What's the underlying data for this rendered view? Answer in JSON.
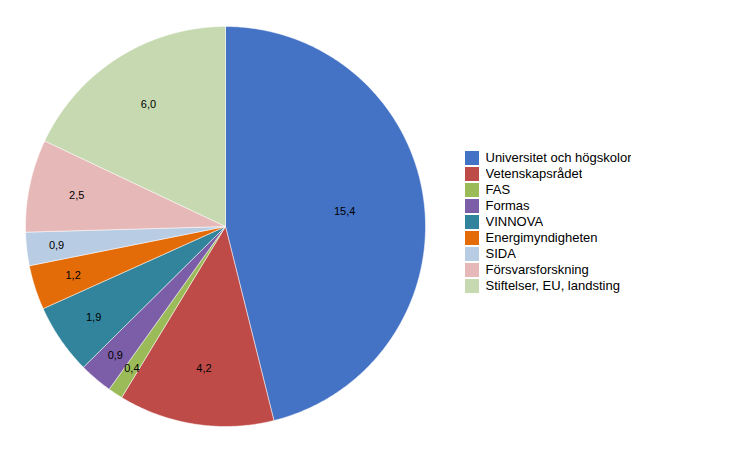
{
  "chart_data": {
    "type": "pie",
    "categories": [
      "Universitet och högskolor",
      "Vetenskapsrådet",
      "FAS",
      "Formas",
      "VINNOVA",
      "Energimyndigheten",
      "SIDA",
      "Försvarsforskning",
      "Stiftelser, EU, landsting"
    ],
    "values": [
      15.4,
      4.2,
      0.4,
      0.9,
      1.9,
      1.2,
      0.9,
      2.5,
      6.0
    ],
    "value_labels": [
      "15,4",
      "4,2",
      "0,4",
      "0,9",
      "1,9",
      "1,2",
      "0,9",
      "2,5",
      "6,0"
    ],
    "colors": [
      "#4472C4",
      "#BE4B48",
      "#9BBB59",
      "#7B5EA7",
      "#31849B",
      "#E36C09",
      "#B8CCE4",
      "#E6B9B8",
      "#C6D9B0"
    ],
    "data_labels": true,
    "legend": "right"
  }
}
